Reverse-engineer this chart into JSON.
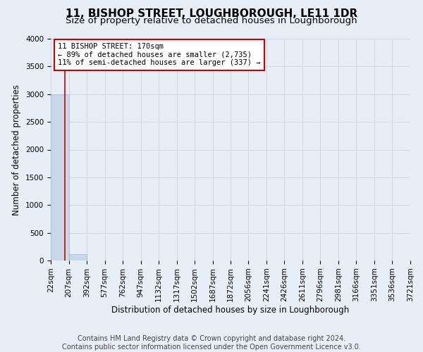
{
  "title": "11, BISHOP STREET, LOUGHBOROUGH, LE11 1DR",
  "subtitle": "Size of property relative to detached houses in Loughborough",
  "xlabel": "Distribution of detached houses by size in Loughborough",
  "ylabel": "Number of detached properties",
  "footer_line1": "Contains HM Land Registry data © Crown copyright and database right 2024.",
  "footer_line2": "Contains public sector information licensed under the Open Government Licence v3.0.",
  "bin_edges": [
    22,
    207,
    392,
    577,
    762,
    947,
    1132,
    1317,
    1502,
    1687,
    1872,
    2056,
    2241,
    2426,
    2611,
    2796,
    2981,
    3166,
    3351,
    3536,
    3721
  ],
  "bar_heights": [
    3000,
    110,
    0,
    0,
    0,
    0,
    0,
    0,
    0,
    0,
    0,
    0,
    0,
    0,
    0,
    0,
    0,
    0,
    0,
    0
  ],
  "bar_color": "#c8d8e8",
  "bar_edgecolor": "#a0b8cc",
  "property_size": 170,
  "annotation_text_line1": "11 BISHOP STREET: 170sqm",
  "annotation_text_line2": "← 89% of detached houses are smaller (2,735)",
  "annotation_text_line3": "11% of semi-detached houses are larger (337) →",
  "annotation_box_color": "#ffffff",
  "annotation_box_edgecolor": "#cc0000",
  "vline_color": "#cc0000",
  "ylim": [
    0,
    4000
  ],
  "yticks": [
    0,
    500,
    1000,
    1500,
    2000,
    2500,
    3000,
    3500,
    4000
  ],
  "grid_color": "#d0d8e8",
  "background_color": "#e8eef5",
  "title_fontsize": 11,
  "subtitle_fontsize": 9.5,
  "axis_label_fontsize": 8.5,
  "tick_fontsize": 7.5,
  "annotation_fontsize": 7.5,
  "footer_fontsize": 7
}
